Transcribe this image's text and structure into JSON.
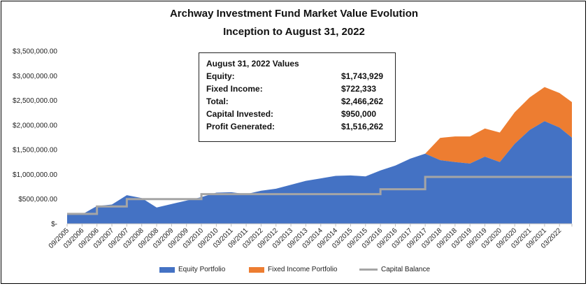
{
  "chart_data": {
    "type": "area",
    "title": "Archway Investment Fund Market Value Evolution",
    "subtitle": "Inception to August 31, 2022",
    "ylim": [
      0,
      3500000
    ],
    "y_ticks": [
      "$-",
      "$500,000.00",
      "$1,000,000.00",
      "$1,500,000.00",
      "$2,000,000.00",
      "$2,500,000.00",
      "$3,000,000.00",
      "$3,500,000.00"
    ],
    "x": [
      "09/2005",
      "03/2006",
      "09/2006",
      "03/2007",
      "09/2007",
      "03/2008",
      "09/2008",
      "03/2009",
      "09/2009",
      "03/2010",
      "09/2010",
      "03/2011",
      "09/2011",
      "03/2012",
      "09/2012",
      "03/2013",
      "09/2013",
      "03/2014",
      "09/2014",
      "03/2015",
      "09/2015",
      "03/2016",
      "09/2016",
      "03/2017",
      "09/2017",
      "03/2018",
      "09/2018",
      "03/2019",
      "09/2019",
      "03/2020",
      "09/2020",
      "03/2021",
      "09/2021",
      "03/2022",
      "08/2022"
    ],
    "x_tick_labels": [
      "09/2005",
      "03/2006",
      "09/2006",
      "03/2007",
      "09/2007",
      "03/2008",
      "09/2008",
      "03/2009",
      "09/2009",
      "03/2010",
      "09/2010",
      "03/2011",
      "09/2011",
      "03/2012",
      "09/2012",
      "03/2013",
      "09/2013",
      "03/2014",
      "09/2014",
      "03/2015",
      "09/2015",
      "03/2016",
      "09/2016",
      "03/2017",
      "09/2017",
      "03/2018",
      "09/2018",
      "03/2019",
      "09/2019",
      "03/2020",
      "09/2020",
      "03/2021",
      "09/2021",
      "03/2022"
    ],
    "series": [
      {
        "name": "Equity Portfolio",
        "type": "area",
        "values": [
          190000,
          190000,
          360000,
          390000,
          580000,
          520000,
          330000,
          400000,
          470000,
          540000,
          630000,
          640000,
          600000,
          670000,
          710000,
          790000,
          870000,
          920000,
          970000,
          980000,
          960000,
          1080000,
          1180000,
          1320000,
          1420000,
          1290000,
          1250000,
          1220000,
          1360000,
          1250000,
          1620000,
          1900000,
          2080000,
          1950000,
          1743929
        ]
      },
      {
        "name": "Fixed Income Portfolio",
        "type": "stacked-area",
        "values": [
          0,
          0,
          0,
          0,
          0,
          0,
          0,
          0,
          0,
          0,
          0,
          0,
          0,
          0,
          0,
          0,
          0,
          0,
          0,
          0,
          0,
          0,
          0,
          0,
          0,
          450000,
          520000,
          550000,
          570000,
          600000,
          640000,
          660000,
          690000,
          700000,
          722333
        ]
      },
      {
        "name": "Capital Balance",
        "type": "line",
        "values": [
          200000,
          200000,
          350000,
          350000,
          500000,
          500000,
          500000,
          500000,
          500000,
          600000,
          600000,
          600000,
          600000,
          600000,
          600000,
          600000,
          600000,
          600000,
          600000,
          600000,
          600000,
          700000,
          700000,
          700000,
          950000,
          950000,
          950000,
          950000,
          950000,
          950000,
          950000,
          950000,
          950000,
          950000,
          950000
        ]
      }
    ],
    "colors": {
      "equity": "#4472C4",
      "fixed_income": "#ED7D31",
      "capital": "#A5A5A5"
    },
    "legend_position": "bottom",
    "grid": false
  },
  "info_box": {
    "heading": "August 31, 2022 Values",
    "rows": [
      {
        "label": "Equity:",
        "value": "$1,743,929"
      },
      {
        "label": "Fixed Income:",
        "value": "$722,333"
      },
      {
        "label": "Total:",
        "value": "$2,466,262"
      },
      {
        "label": "Capital Invested:",
        "value": "$950,000"
      },
      {
        "label": "Profit Generated:",
        "value": "$1,516,262"
      }
    ]
  }
}
